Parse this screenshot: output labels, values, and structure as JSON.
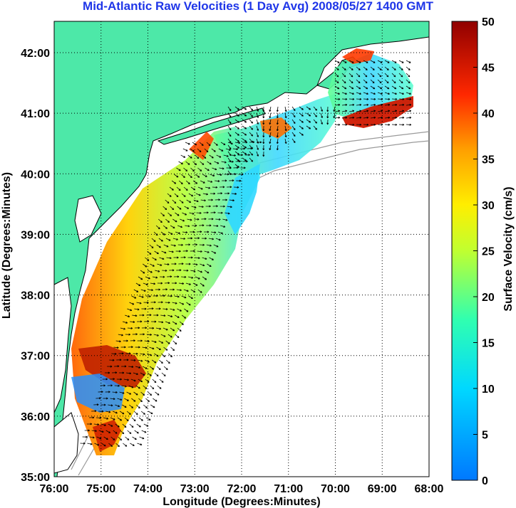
{
  "title": "Mid-Atlantic Raw Velocities (1 Day Avg) 2008/05/27 1400 GMT",
  "map": {
    "xlabel": "Longitude (Degrees:Minutes)",
    "ylabel": "Latitude (Degrees:Minutes)",
    "x_ticks": [
      "76:00",
      "75:00",
      "74:00",
      "73:00",
      "72:00",
      "71:00",
      "70:00",
      "69:00",
      "68:00"
    ],
    "y_ticks": [
      "42:00",
      "41:00",
      "40:00",
      "39:00",
      "38:00",
      "37:00",
      "36:00",
      "35:00"
    ],
    "lon_range": [
      -76,
      -68
    ],
    "lat_range": [
      35,
      42.5
    ],
    "grid": "dotted",
    "colors": {
      "land": "#4de8a8",
      "coast": "#000000",
      "bathymetry": "#9a9a9a",
      "water": "#ffffff"
    }
  },
  "colorbar": {
    "label": "Surface Velocity (cm/s)",
    "ticks": [
      "50",
      "45",
      "40",
      "35",
      "30",
      "25",
      "20",
      "15",
      "10",
      "5",
      "0"
    ],
    "range": [
      0,
      50
    ],
    "colormap": "jet"
  }
}
